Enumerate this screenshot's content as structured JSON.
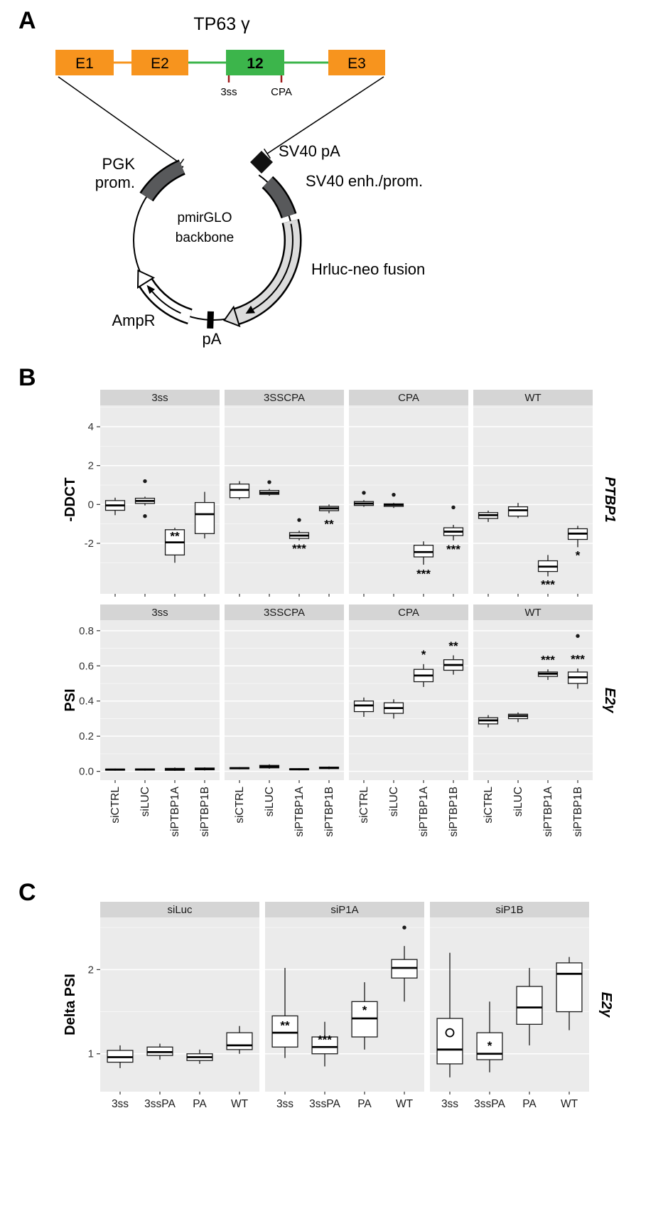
{
  "panel_a": {
    "label": "A",
    "title": "TP63 γ",
    "exons": {
      "e1": "E1",
      "e2": "E2",
      "e12": "12",
      "e3": "E3"
    },
    "sites": {
      "ss3": "3ss",
      "cpa": "CPA"
    },
    "plasmid": {
      "pgk_line1": "PGK",
      "pgk_line2": "prom.",
      "center_line1": "pmirGLO",
      "center_line2": "backbone",
      "sv40_pa": "SV40 pA",
      "sv40_enh": "SV40 enh./prom.",
      "hrluc": "Hrluc-neo fusion",
      "ampr": "AmpR",
      "pa": "pA"
    },
    "colors": {
      "exon_orange": "#F7941E",
      "exon_green": "#3CB54B",
      "segment_gray": "#58595B",
      "band_gray": "#DCDCDC",
      "mutation_red": "#9E1B1B"
    }
  },
  "panel_b": {
    "label": "B"
  },
  "panel_c": {
    "label": "C"
  },
  "chart_data": [
    {
      "type": "boxplot",
      "ylabel": "-DDCT",
      "right_label": "PTBP1",
      "ylim": [
        -4.6,
        5.1
      ],
      "yticks": [
        -2,
        0,
        2,
        4
      ],
      "ytick_labels": [
        "-2",
        "0",
        "2",
        "4"
      ],
      "categories": [
        "siCTRL",
        "siLUC",
        "siPTBP1A",
        "siPTBP1B"
      ],
      "legend_position": "none",
      "grid": true,
      "facets": [
        {
          "name": "3ss",
          "boxes": [
            {
              "lo": -0.55,
              "q1": -0.3,
              "med": -0.05,
              "q3": 0.2,
              "hi": 0.35,
              "out": []
            },
            {
              "lo": -0.05,
              "q1": 0.05,
              "med": 0.18,
              "q3": 0.32,
              "hi": 0.4,
              "out": [
                1.2,
                -0.6
              ]
            },
            {
              "lo": -3.0,
              "q1": -2.6,
              "med": -1.95,
              "q3": -1.3,
              "hi": -1.2,
              "out": [],
              "sig": "**",
              "sigY": -1.62
            },
            {
              "lo": -1.75,
              "q1": -1.5,
              "med": -0.5,
              "q3": 0.1,
              "hi": 0.65,
              "out": []
            }
          ]
        },
        {
          "name": "3SSCPA",
          "boxes": [
            {
              "lo": 0.25,
              "q1": 0.35,
              "med": 0.75,
              "q3": 1.05,
              "hi": 1.2,
              "out": []
            },
            {
              "lo": 0.45,
              "q1": 0.52,
              "med": 0.6,
              "q3": 0.72,
              "hi": 0.8,
              "out": [
                1.15
              ]
            },
            {
              "lo": -1.85,
              "q1": -1.75,
              "med": -1.6,
              "q3": -1.45,
              "hi": -1.35,
              "out": [
                -0.8
              ],
              "sig": "***",
              "sigY": -2.25
            },
            {
              "lo": -0.45,
              "q1": -0.32,
              "med": -0.2,
              "q3": -0.1,
              "hi": 0.0,
              "out": [],
              "sig": "**",
              "sigY": -1.0
            }
          ]
        },
        {
          "name": "CPA",
          "boxes": [
            {
              "lo": -0.12,
              "q1": -0.05,
              "med": 0.05,
              "q3": 0.15,
              "hi": 0.22,
              "out": [
                0.6
              ]
            },
            {
              "lo": -0.18,
              "q1": -0.1,
              "med": -0.02,
              "q3": 0.03,
              "hi": 0.08,
              "out": [
                0.5
              ]
            },
            {
              "lo": -3.1,
              "q1": -2.7,
              "med": -2.45,
              "q3": -2.1,
              "hi": -1.9,
              "out": [],
              "sig": "***",
              "sigY": -3.55
            },
            {
              "lo": -1.85,
              "q1": -1.6,
              "med": -1.4,
              "q3": -1.2,
              "hi": -1.05,
              "out": [
                -0.15
              ],
              "sig": "***",
              "sigY": -2.3
            }
          ]
        },
        {
          "name": "WT",
          "boxes": [
            {
              "lo": -0.9,
              "q1": -0.72,
              "med": -0.55,
              "q3": -0.42,
              "hi": -0.32,
              "out": []
            },
            {
              "lo": -0.7,
              "q1": -0.6,
              "med": -0.3,
              "q3": -0.12,
              "hi": 0.08,
              "out": []
            },
            {
              "lo": -3.7,
              "q1": -3.45,
              "med": -3.2,
              "q3": -2.9,
              "hi": -2.6,
              "out": [],
              "sig": "***",
              "sigY": -4.1
            },
            {
              "lo": -2.2,
              "q1": -1.8,
              "med": -1.5,
              "q3": -1.25,
              "hi": -1.1,
              "out": [],
              "sig": "*",
              "sigY": -2.6
            }
          ]
        }
      ]
    },
    {
      "type": "boxplot",
      "ylabel": "PSI",
      "right_label": "E2γ",
      "ylim": [
        -0.05,
        0.86
      ],
      "yticks": [
        0,
        0.2,
        0.4,
        0.6,
        0.8
      ],
      "ytick_labels": [
        "0.0",
        "0.2",
        "0.4",
        "0.6",
        "0.8"
      ],
      "categories": [
        "siCTRL",
        "siLUC",
        "siPTBP1A",
        "siPTBP1B"
      ],
      "legend_position": "none",
      "grid": true,
      "facets": [
        {
          "name": "3ss",
          "boxes": [
            {
              "lo": 0.004,
              "q1": 0.007,
              "med": 0.01,
              "q3": 0.013,
              "hi": 0.016,
              "out": []
            },
            {
              "lo": 0.004,
              "q1": 0.007,
              "med": 0.011,
              "q3": 0.014,
              "hi": 0.017,
              "out": []
            },
            {
              "lo": 0.003,
              "q1": 0.006,
              "med": 0.011,
              "q3": 0.017,
              "hi": 0.022,
              "out": []
            },
            {
              "lo": 0.005,
              "q1": 0.009,
              "med": 0.014,
              "q3": 0.019,
              "hi": 0.023,
              "out": []
            }
          ]
        },
        {
          "name": "3SSCPA",
          "boxes": [
            {
              "lo": 0.012,
              "q1": 0.015,
              "med": 0.018,
              "q3": 0.021,
              "hi": 0.024,
              "out": []
            },
            {
              "lo": 0.015,
              "q1": 0.02,
              "med": 0.027,
              "q3": 0.034,
              "hi": 0.04,
              "out": []
            },
            {
              "lo": 0.006,
              "q1": 0.009,
              "med": 0.012,
              "q3": 0.015,
              "hi": 0.018,
              "out": []
            },
            {
              "lo": 0.012,
              "q1": 0.016,
              "med": 0.02,
              "q3": 0.024,
              "hi": 0.028,
              "out": []
            }
          ]
        },
        {
          "name": "CPA",
          "boxes": [
            {
              "lo": 0.31,
              "q1": 0.34,
              "med": 0.375,
              "q3": 0.4,
              "hi": 0.42,
              "out": []
            },
            {
              "lo": 0.3,
              "q1": 0.33,
              "med": 0.36,
              "q3": 0.39,
              "hi": 0.41,
              "out": []
            },
            {
              "lo": 0.48,
              "q1": 0.51,
              "med": 0.545,
              "q3": 0.58,
              "hi": 0.61,
              "out": [],
              "sig": "*",
              "sigY": 0.665
            },
            {
              "lo": 0.55,
              "q1": 0.575,
              "med": 0.605,
              "q3": 0.635,
              "hi": 0.66,
              "out": [],
              "sig": "**",
              "sigY": 0.715
            }
          ]
        },
        {
          "name": "WT",
          "boxes": [
            {
              "lo": 0.25,
              "q1": 0.27,
              "med": 0.29,
              "q3": 0.305,
              "hi": 0.32,
              "out": []
            },
            {
              "lo": 0.28,
              "q1": 0.3,
              "med": 0.315,
              "q3": 0.325,
              "hi": 0.335,
              "out": []
            },
            {
              "lo": 0.52,
              "q1": 0.54,
              "med": 0.555,
              "q3": 0.565,
              "hi": 0.58,
              "out": [],
              "sig": "***",
              "sigY": 0.635
            },
            {
              "lo": 0.47,
              "q1": 0.5,
              "med": 0.535,
              "q3": 0.565,
              "hi": 0.585,
              "out": [
                0.77
              ],
              "sig": "***",
              "sigY": 0.64
            }
          ]
        }
      ]
    },
    {
      "type": "boxplot",
      "ylabel": "Delta PSI",
      "right_label": "E2γ",
      "ylim": [
        0.55,
        2.62
      ],
      "yticks": [
        1,
        2
      ],
      "ytick_labels": [
        "1",
        "2"
      ],
      "categories": [
        "3ss",
        "3ssPA",
        "PA",
        "WT"
      ],
      "legend_position": "none",
      "grid": true,
      "facets": [
        {
          "name": "siLuc",
          "boxes": [
            {
              "lo": 0.83,
              "q1": 0.9,
              "med": 0.96,
              "q3": 1.04,
              "hi": 1.1,
              "out": []
            },
            {
              "lo": 0.93,
              "q1": 0.98,
              "med": 1.02,
              "q3": 1.08,
              "hi": 1.12,
              "out": []
            },
            {
              "lo": 0.88,
              "q1": 0.92,
              "med": 0.96,
              "q3": 1.0,
              "hi": 1.05,
              "out": []
            },
            {
              "lo": 1.0,
              "q1": 1.05,
              "med": 1.1,
              "q3": 1.25,
              "hi": 1.33,
              "out": []
            }
          ]
        },
        {
          "name": "siP1A",
          "boxes": [
            {
              "lo": 0.95,
              "q1": 1.08,
              "med": 1.25,
              "q3": 1.45,
              "hi": 2.02,
              "out": [],
              "sig": "**",
              "sigY": 1.34
            },
            {
              "lo": 0.85,
              "q1": 1.0,
              "med": 1.08,
              "q3": 1.2,
              "hi": 1.38,
              "out": [],
              "sig": "***",
              "sigY": 1.17
            },
            {
              "lo": 1.05,
              "q1": 1.2,
              "med": 1.42,
              "q3": 1.62,
              "hi": 1.85,
              "out": [],
              "sig": "*",
              "sigY": 1.52
            },
            {
              "lo": 1.62,
              "q1": 1.9,
              "med": 2.02,
              "q3": 2.12,
              "hi": 2.28,
              "out": [
                2.5
              ]
            }
          ]
        },
        {
          "name": "siP1B",
          "boxes": [
            {
              "lo": 0.72,
              "q1": 0.88,
              "med": 1.05,
              "q3": 1.42,
              "hi": 2.2,
              "out": [],
              "sig": "O",
              "sigY": 1.25
            },
            {
              "lo": 0.78,
              "q1": 0.93,
              "med": 1.0,
              "q3": 1.25,
              "hi": 1.62,
              "out": [],
              "sig": "*",
              "sigY": 1.1
            },
            {
              "lo": 1.1,
              "q1": 1.35,
              "med": 1.55,
              "q3": 1.8,
              "hi": 2.02,
              "out": []
            },
            {
              "lo": 1.28,
              "q1": 1.5,
              "med": 1.95,
              "q3": 2.08,
              "hi": 2.15,
              "out": []
            }
          ]
        }
      ]
    }
  ]
}
